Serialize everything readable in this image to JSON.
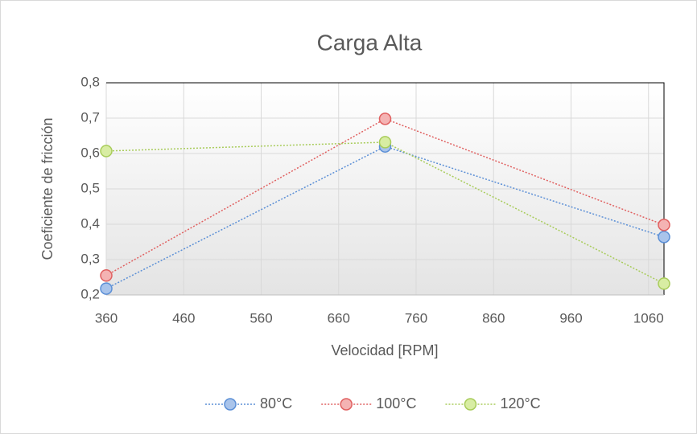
{
  "chart_data": {
    "type": "line",
    "title": "Carga Alta",
    "x_label": "Velocidad [RPM]",
    "y_label": "Coeficiente de fricción",
    "x": [
      360,
      720,
      1080
    ],
    "series": [
      {
        "name": "80°C",
        "color": "#5b8fd6",
        "marker_fill": "#a9c4eb",
        "values": [
          0.218,
          0.62,
          0.364
        ]
      },
      {
        "name": "100°C",
        "color": "#e06060",
        "marker_fill": "#f4b3b3",
        "values": [
          0.255,
          0.698,
          0.398
        ]
      },
      {
        "name": "120°C",
        "color": "#a8cc5a",
        "marker_fill": "#d8eda3",
        "values": [
          0.607,
          0.632,
          0.232
        ]
      }
    ],
    "xlim": [
      360,
      1080
    ],
    "ylim": [
      0.2,
      0.8
    ],
    "xticks": [
      360,
      460,
      560,
      660,
      760,
      860,
      960,
      1060
    ],
    "yticks": [
      {
        "value": 0.2,
        "label": "0,2"
      },
      {
        "value": 0.3,
        "label": "0,3"
      },
      {
        "value": 0.4,
        "label": "0,4"
      },
      {
        "value": 0.5,
        "label": "0,5"
      },
      {
        "value": 0.6,
        "label": "0,6"
      },
      {
        "value": 0.7,
        "label": "0,7"
      },
      {
        "value": 0.8,
        "label": "0,8"
      }
    ],
    "grid": true,
    "legend": "bottom"
  }
}
